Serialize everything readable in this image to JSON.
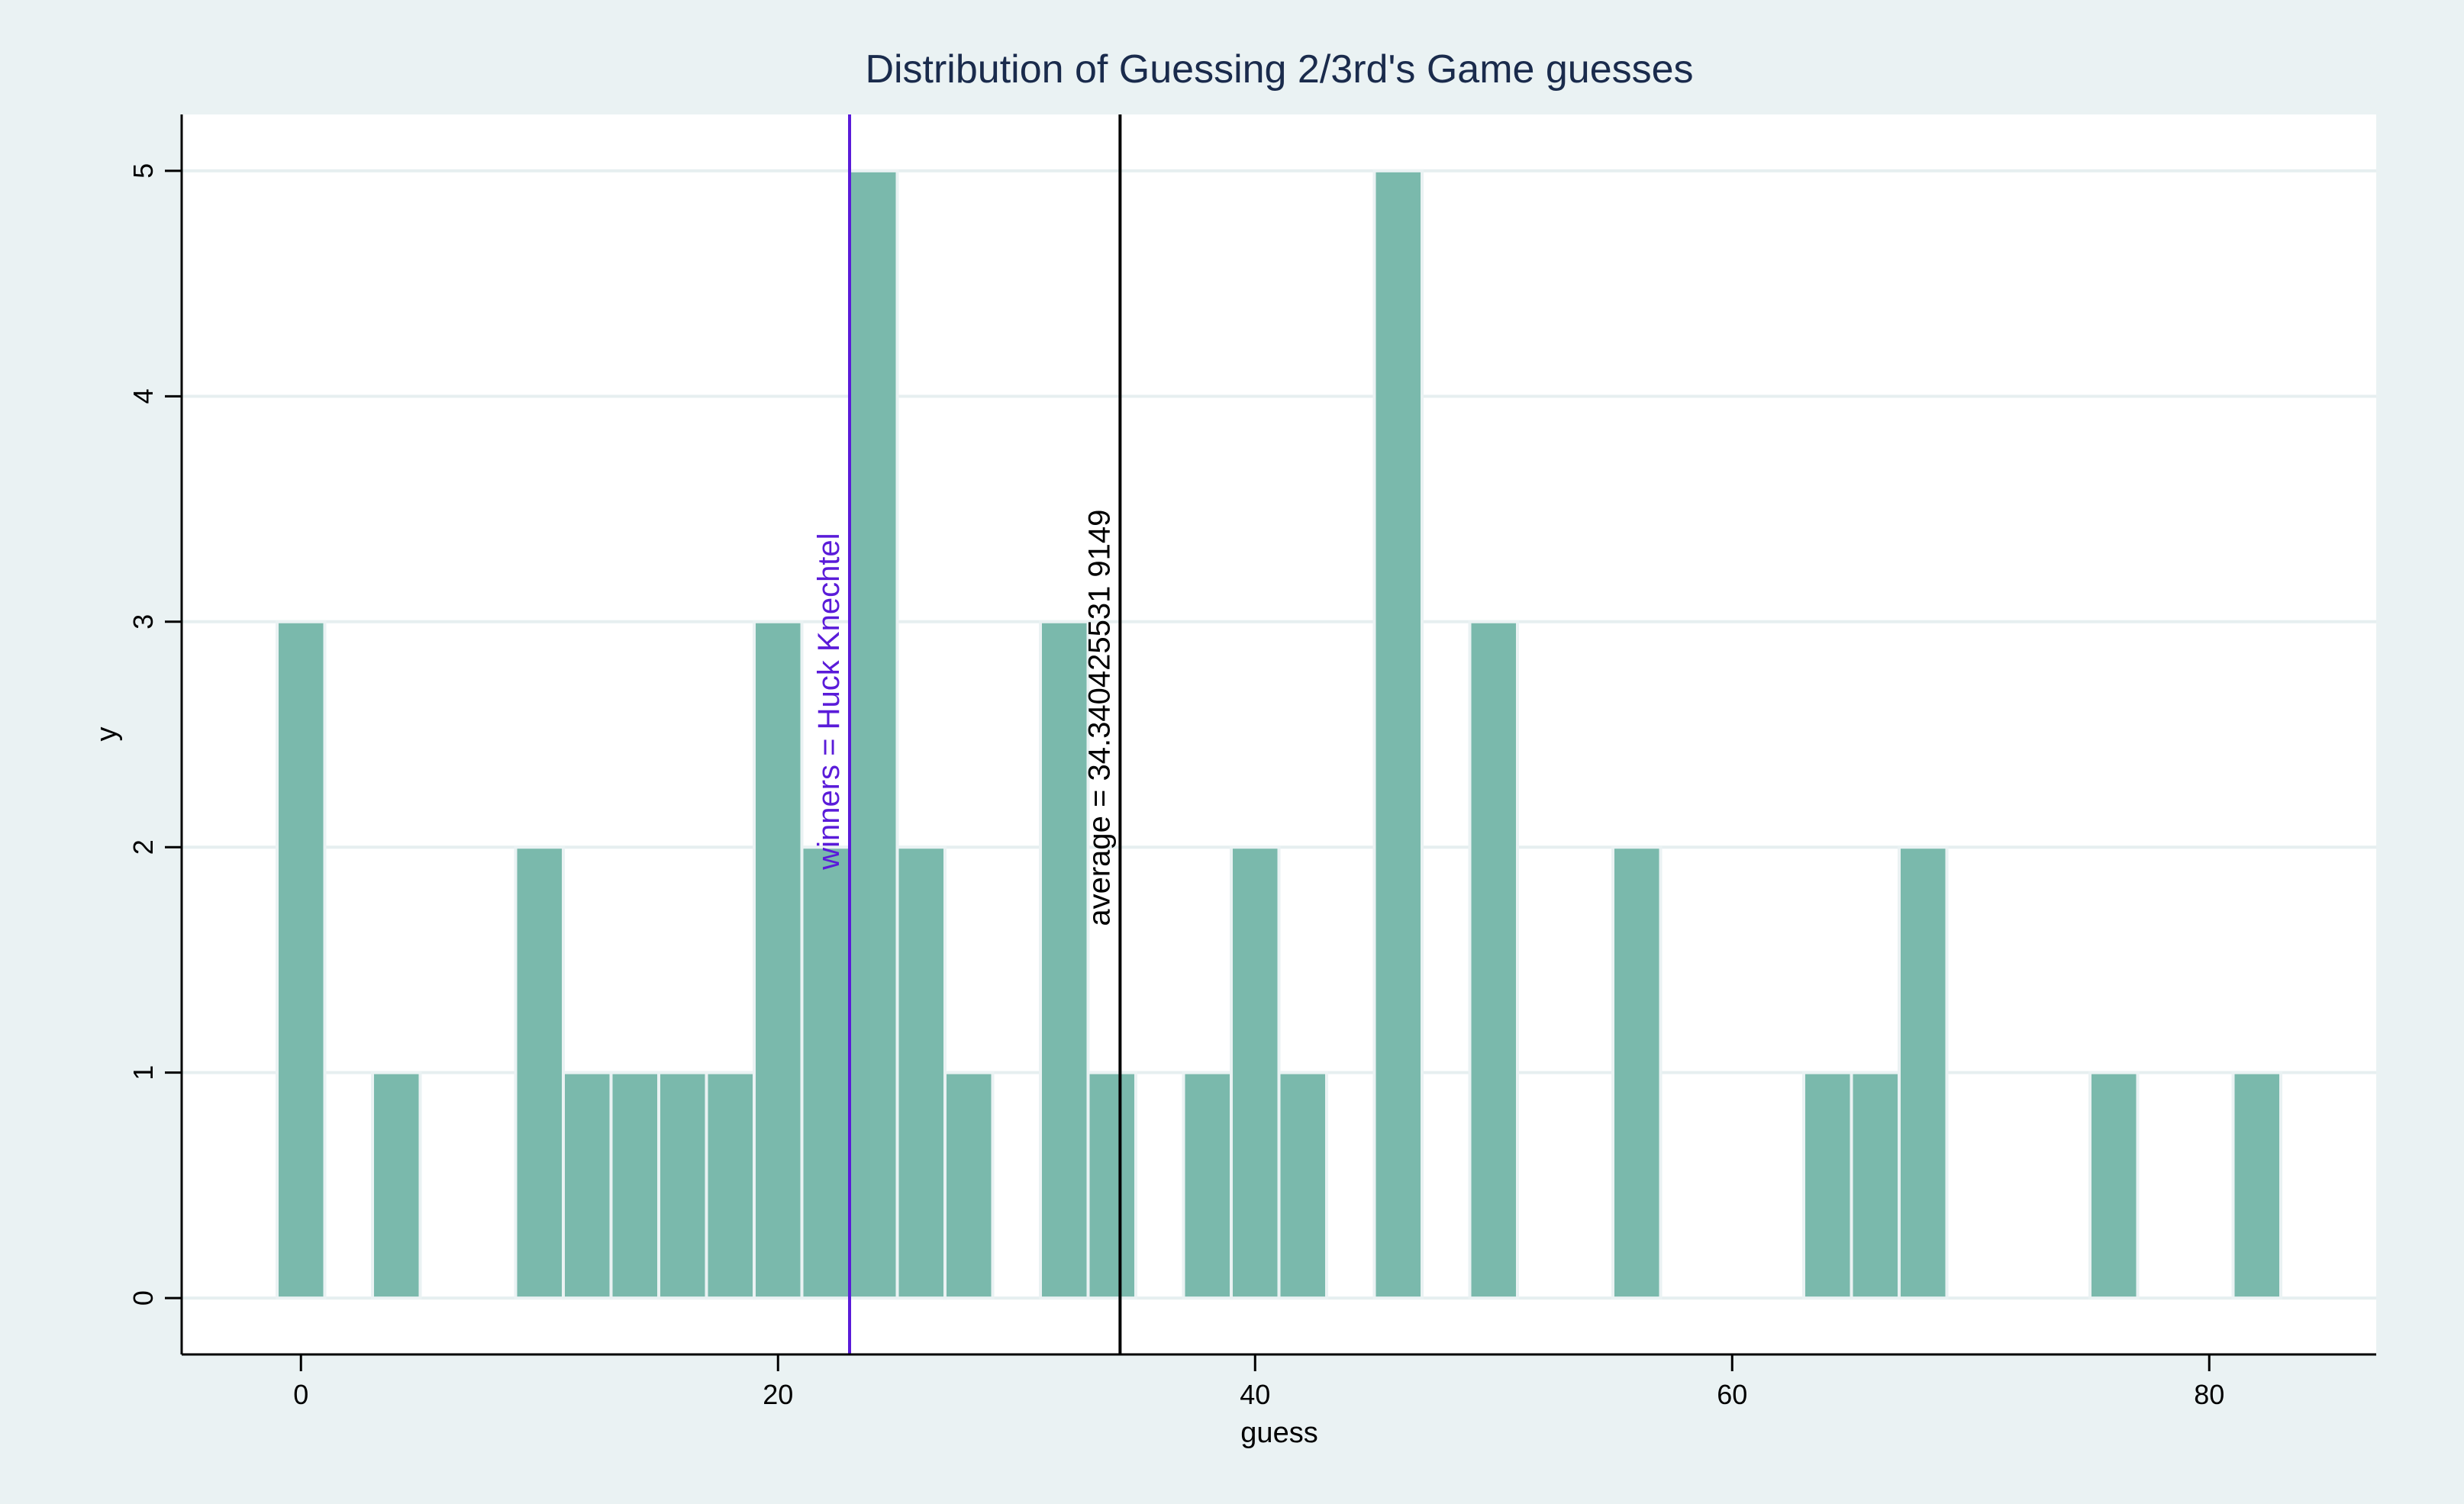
{
  "chart_data": {
    "type": "bar",
    "title": "Distribution of Guessing 2/3rd's Game guesses",
    "xlabel": "guess",
    "ylabel": "y",
    "xlim": [
      -5,
      87
    ],
    "ylim": [
      -0.25,
      5.25
    ],
    "xticks": [
      0,
      20,
      40,
      60,
      80
    ],
    "yticks": [
      0,
      1,
      2,
      3,
      4,
      5
    ],
    "grid": true,
    "bin_width": 2,
    "bars": [
      {
        "x": 0,
        "y": 3
      },
      {
        "x": 4,
        "y": 1
      },
      {
        "x": 10,
        "y": 2
      },
      {
        "x": 12,
        "y": 1
      },
      {
        "x": 14,
        "y": 1
      },
      {
        "x": 16,
        "y": 1
      },
      {
        "x": 18,
        "y": 1
      },
      {
        "x": 20,
        "y": 3
      },
      {
        "x": 22,
        "y": 2
      },
      {
        "x": 24,
        "y": 5
      },
      {
        "x": 26,
        "y": 2
      },
      {
        "x": 28,
        "y": 1
      },
      {
        "x": 32,
        "y": 3
      },
      {
        "x": 34,
        "y": 1
      },
      {
        "x": 38,
        "y": 1
      },
      {
        "x": 40,
        "y": 2
      },
      {
        "x": 42,
        "y": 1
      },
      {
        "x": 46,
        "y": 5
      },
      {
        "x": 50,
        "y": 3
      },
      {
        "x": 56,
        "y": 2
      },
      {
        "x": 64,
        "y": 1
      },
      {
        "x": 66,
        "y": 1
      },
      {
        "x": 68,
        "y": 2
      },
      {
        "x": 76,
        "y": 1
      },
      {
        "x": 82,
        "y": 1
      }
    ],
    "reference_lines": [
      {
        "x": 23,
        "label": "winners = Huck Knechtel",
        "color": "#5a1bd9"
      },
      {
        "x": 34.34,
        "label": "average = 34.340425531 9149",
        "color": "#000000"
      }
    ],
    "colors": {
      "bar_fill": "#7ab9ac",
      "bar_edge": "#eaf2f3",
      "grid": "#e6eff0",
      "title": "#1a2b4c",
      "background": "#eaf2f3",
      "plot": "#ffffff"
    }
  }
}
